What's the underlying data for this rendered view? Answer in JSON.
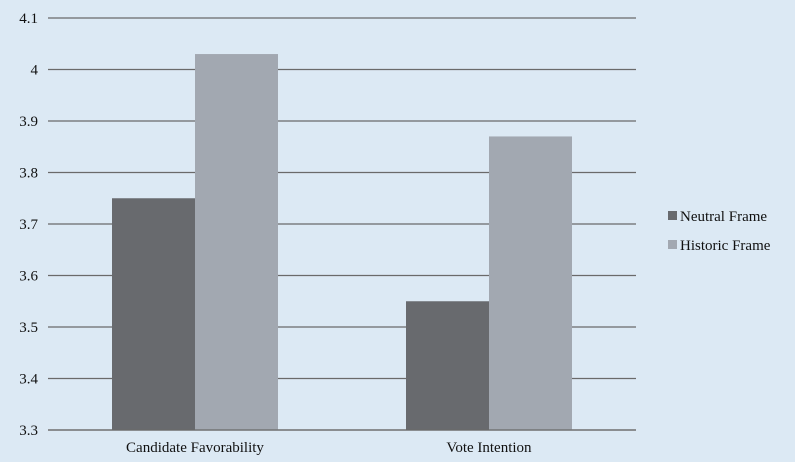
{
  "chart_data": {
    "type": "bar",
    "categories": [
      "Candidate Favorability",
      "Vote Intention"
    ],
    "series": [
      {
        "name": "Neutral Frame",
        "values": [
          3.75,
          3.55
        ],
        "color": "#686a6e"
      },
      {
        "name": "Historic Frame",
        "values": [
          4.03,
          3.87
        ],
        "color": "#a2a8b1"
      }
    ],
    "title": "",
    "xlabel": "",
    "ylabel": "",
    "ylim": [
      3.3,
      4.1
    ],
    "yticks": [
      3.3,
      3.4,
      3.5,
      3.6,
      3.7,
      3.8,
      3.9,
      4,
      4.1
    ],
    "ytick_labels": [
      "3.3",
      "3.4",
      "3.5",
      "3.6",
      "3.7",
      "3.8",
      "3.9",
      "4",
      "4.1"
    ],
    "grid": true,
    "legend_position": "right",
    "background_color": "#dce9f4",
    "gridline_color": "#6a6a6a"
  }
}
